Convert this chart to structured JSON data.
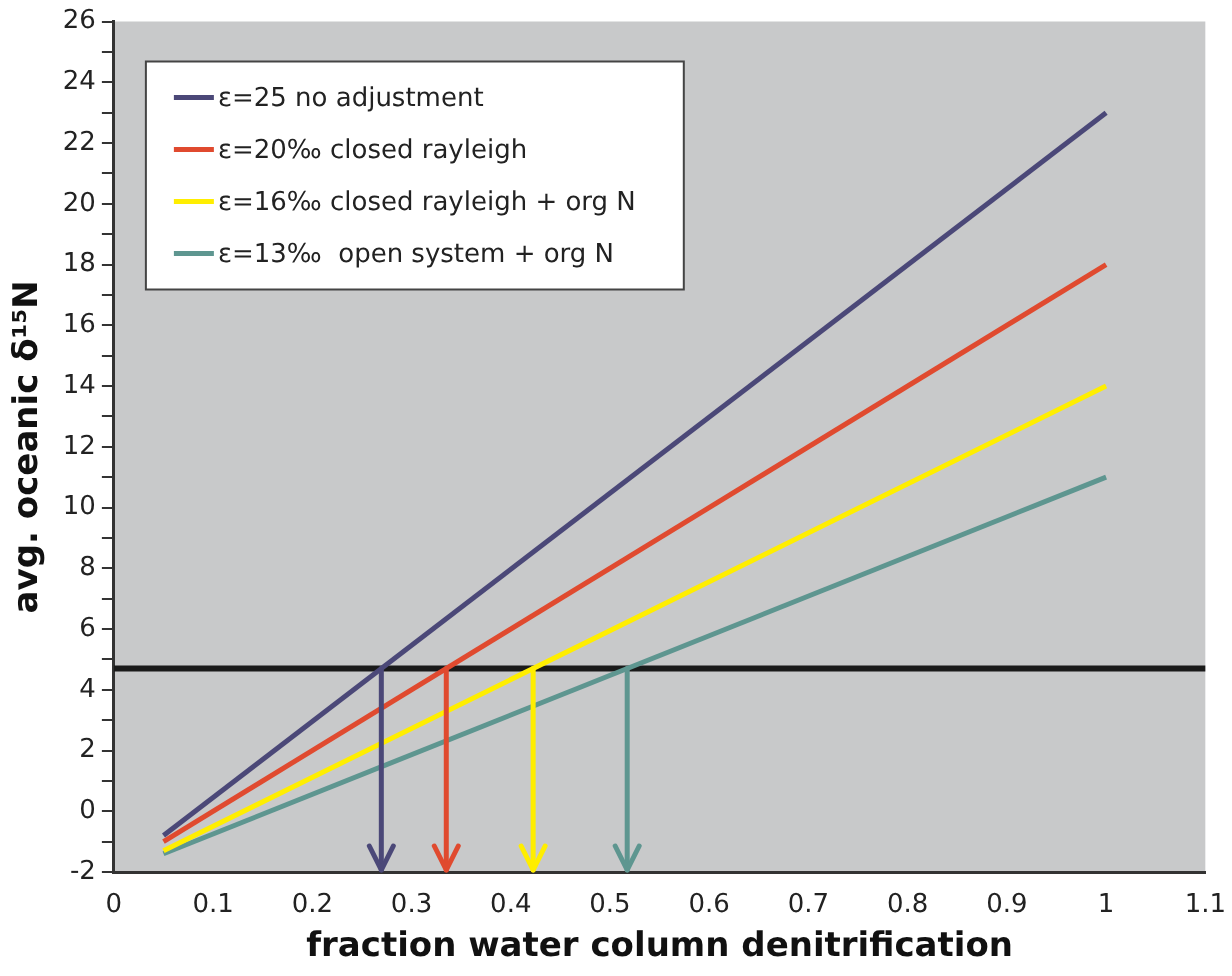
{
  "chart_data": {
    "type": "line",
    "xlabel": "fraction water column denitrification",
    "ylabel": "avg. oceanic δ¹⁵N",
    "x": [
      0.05,
      1
    ],
    "xlim": [
      0,
      1.1
    ],
    "xticks": [
      0,
      0.1,
      0.2,
      0.3,
      0.4,
      0.5,
      0.6,
      0.7,
      0.8,
      0.9,
      1,
      1.1
    ],
    "ylim": [
      -2,
      26
    ],
    "yticks": [
      -2,
      {
        "value": -1,
        "label": null
      },
      0,
      {
        "value": 1,
        "label": null
      },
      2,
      {
        "value": 3,
        "label": null
      },
      4,
      {
        "value": 5,
        "label": null
      },
      6,
      {
        "value": 7,
        "label": null
      },
      8,
      {
        "value": 9,
        "label": null
      },
      10,
      {
        "value": 11,
        "label": null
      },
      12,
      {
        "value": 13,
        "label": null
      },
      14,
      {
        "value": 15,
        "label": null
      },
      16,
      {
        "value": 17,
        "label": null
      },
      18,
      {
        "value": 19,
        "label": null
      },
      20,
      {
        "value": 21,
        "label": null
      },
      22,
      {
        "value": 23,
        "label": null
      },
      24,
      {
        "value": 25,
        "label": null
      },
      26
    ],
    "grid": false,
    "legend": "top left",
    "marker": "none",
    "line_style": "solid",
    "ref_lines": [
      {
        "axis": "y",
        "value": 4.7,
        "color": "#1a1a1a"
      }
    ],
    "series": [
      {
        "name": "ε=25 no adjustment",
        "color": "#4b4878",
        "values": [
          -0.8,
          23
        ]
      },
      {
        "name": "ε=20‰ closed rayleigh",
        "color": "#e04a2f",
        "values": [
          -1.0,
          18
        ]
      },
      {
        "name": "ε=16‰ closed rayleigh + org N",
        "color": "#ffee00",
        "values": [
          -1.3,
          14
        ]
      },
      {
        "name": "ε=13‰  open system + org N",
        "color": "#5e9690",
        "values": [
          -1.4,
          11
        ]
      }
    ]
  }
}
